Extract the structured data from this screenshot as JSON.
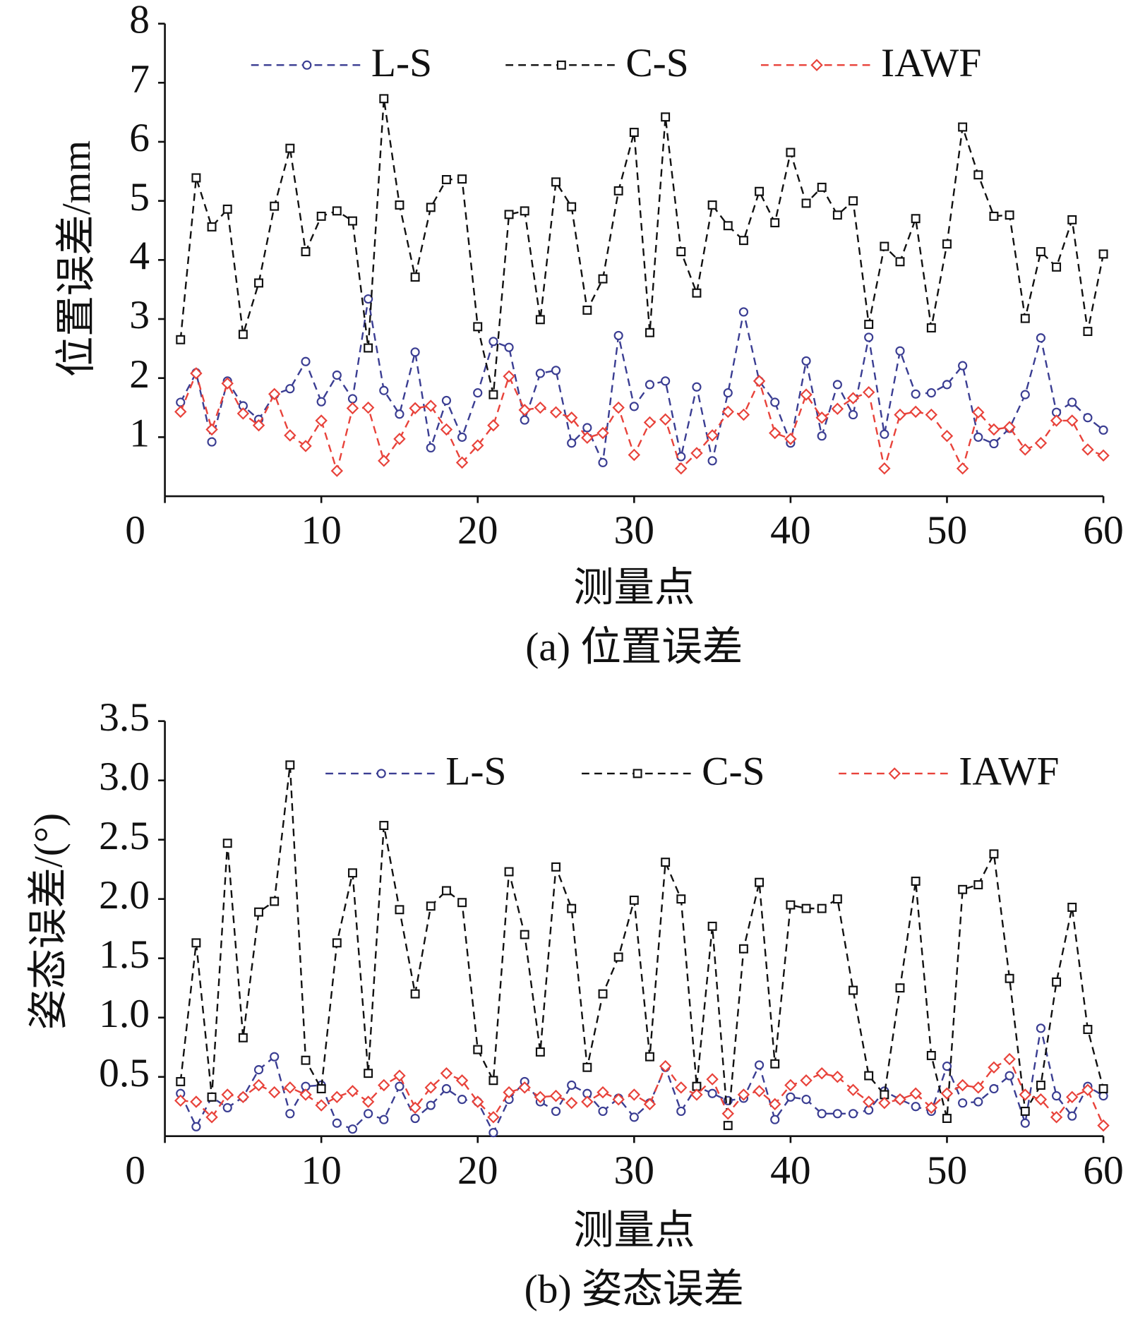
{
  "chart_data": [
    {
      "type": "line",
      "y_label": "位置误差/mm",
      "x_label": "测量点",
      "caption": "(a) 位置误差",
      "x": [
        1,
        2,
        3,
        4,
        5,
        6,
        7,
        8,
        9,
        10,
        11,
        12,
        13,
        14,
        15,
        16,
        17,
        18,
        19,
        20,
        21,
        22,
        23,
        24,
        25,
        26,
        27,
        28,
        29,
        30,
        31,
        32,
        33,
        34,
        35,
        36,
        37,
        38,
        39,
        40,
        41,
        42,
        43,
        44,
        45,
        46,
        47,
        48,
        49,
        50,
        51,
        52,
        53,
        54,
        55,
        56,
        57,
        58,
        59,
        60
      ],
      "xlim": [
        0,
        60
      ],
      "xticks": [
        0,
        10,
        20,
        30,
        40,
        50,
        60
      ],
      "ylim": [
        0,
        8
      ],
      "yticks": [
        1,
        2,
        3,
        4,
        5,
        6,
        7,
        8
      ],
      "series": [
        {
          "name": "L-S",
          "color": "#3a3d92",
          "marker": "circle",
          "values": [
            1.59,
            2.09,
            0.92,
            1.95,
            1.53,
            1.3,
            1.72,
            1.82,
            2.28,
            1.6,
            2.05,
            1.65,
            3.34,
            1.79,
            1.39,
            2.44,
            0.82,
            1.62,
            1.0,
            1.75,
            2.62,
            2.52,
            1.29,
            2.08,
            2.13,
            0.9,
            1.16,
            0.57,
            2.72,
            1.52,
            1.89,
            1.95,
            0.67,
            1.85,
            0.6,
            1.75,
            3.12,
            1.95,
            1.59,
            0.9,
            2.29,
            1.02,
            1.89,
            1.38,
            2.69,
            1.05,
            2.46,
            1.73,
            1.75,
            1.89,
            2.21,
            1.0,
            0.89,
            1.15,
            1.72,
            2.68,
            1.42,
            1.59,
            1.33,
            1.12
          ]
        },
        {
          "name": "C-S",
          "color": "#111111",
          "marker": "square",
          "values": [
            2.65,
            5.39,
            4.56,
            4.86,
            2.74,
            3.61,
            4.91,
            5.89,
            4.14,
            4.74,
            4.83,
            4.66,
            2.51,
            6.73,
            4.93,
            3.71,
            4.89,
            5.36,
            5.37,
            2.87,
            1.72,
            4.77,
            4.83,
            2.99,
            5.32,
            4.9,
            3.15,
            3.68,
            5.17,
            6.16,
            2.77,
            6.42,
            4.14,
            3.44,
            4.93,
            4.58,
            4.33,
            5.16,
            4.63,
            5.82,
            4.96,
            5.23,
            4.76,
            5.0,
            2.91,
            4.23,
            3.97,
            4.7,
            2.85,
            4.27,
            6.25,
            5.44,
            4.74,
            4.76,
            3.01,
            4.14,
            3.88,
            4.68,
            2.79,
            4.1
          ]
        },
        {
          "name": "IAWF",
          "color": "#e8423a",
          "marker": "diamond",
          "values": [
            1.43,
            2.08,
            1.13,
            1.91,
            1.4,
            1.2,
            1.73,
            1.03,
            0.85,
            1.28,
            0.43,
            1.49,
            1.5,
            0.6,
            0.97,
            1.49,
            1.53,
            1.13,
            0.57,
            0.86,
            1.2,
            2.03,
            1.46,
            1.5,
            1.42,
            1.33,
            0.99,
            1.07,
            1.5,
            0.7,
            1.25,
            1.3,
            0.47,
            0.73,
            1.03,
            1.43,
            1.38,
            1.95,
            1.07,
            0.97,
            1.72,
            1.33,
            1.48,
            1.66,
            1.76,
            0.47,
            1.38,
            1.43,
            1.38,
            1.02,
            0.47,
            1.42,
            1.13,
            1.17,
            0.79,
            0.9,
            1.28,
            1.28,
            0.79,
            0.69
          ]
        }
      ]
    },
    {
      "type": "line",
      "y_label": "姿态误差/(°)",
      "x_label": "测量点",
      "caption": "(b) 姿态误差",
      "x": [
        1,
        2,
        3,
        4,
        5,
        6,
        7,
        8,
        9,
        10,
        11,
        12,
        13,
        14,
        15,
        16,
        17,
        18,
        19,
        20,
        21,
        22,
        23,
        24,
        25,
        26,
        27,
        28,
        29,
        30,
        31,
        32,
        33,
        34,
        35,
        36,
        37,
        38,
        39,
        40,
        41,
        42,
        43,
        44,
        45,
        46,
        47,
        48,
        49,
        50,
        51,
        52,
        53,
        54,
        55,
        56,
        57,
        58,
        59,
        60
      ],
      "xlim": [
        0,
        60
      ],
      "xticks": [
        0,
        10,
        20,
        30,
        40,
        50,
        60
      ],
      "ylim": [
        0,
        3.5
      ],
      "yticks": [
        0.5,
        {
          "value": 1,
          "label": "1.0"
        },
        1.5,
        {
          "value": 2,
          "label": "2.0"
        },
        2.5,
        {
          "value": 3,
          "label": "3.0"
        },
        3.5
      ],
      "series": [
        {
          "name": "L-S",
          "color": "#3a3d92",
          "marker": "circle",
          "values": [
            0.36,
            0.08,
            0.33,
            0.24,
            0.33,
            0.56,
            0.67,
            0.19,
            0.42,
            0.43,
            0.11,
            0.06,
            0.19,
            0.14,
            0.42,
            0.15,
            0.26,
            0.4,
            0.31,
            0.29,
            0.03,
            0.31,
            0.46,
            0.29,
            0.21,
            0.43,
            0.36,
            0.21,
            0.32,
            0.16,
            0.28,
            0.58,
            0.21,
            0.42,
            0.36,
            0.3,
            0.32,
            0.6,
            0.14,
            0.33,
            0.31,
            0.19,
            0.19,
            0.19,
            0.22,
            0.38,
            0.31,
            0.25,
            0.21,
            0.59,
            0.28,
            0.29,
            0.4,
            0.51,
            0.11,
            0.91,
            0.34,
            0.17,
            0.42,
            0.34
          ]
        },
        {
          "name": "C-S",
          "color": "#111111",
          "marker": "square",
          "values": [
            0.46,
            1.63,
            0.33,
            2.47,
            0.83,
            1.89,
            1.98,
            3.13,
            0.64,
            0.4,
            1.63,
            2.22,
            0.53,
            2.62,
            1.91,
            1.2,
            1.94,
            2.07,
            1.97,
            0.73,
            0.47,
            2.23,
            1.7,
            0.71,
            2.27,
            1.92,
            0.58,
            1.2,
            1.51,
            1.99,
            0.67,
            2.31,
            2.0,
            0.42,
            1.77,
            0.09,
            1.58,
            2.14,
            0.61,
            1.95,
            1.92,
            1.92,
            2.0,
            1.23,
            0.51,
            0.35,
            1.25,
            2.15,
            0.68,
            0.15,
            2.08,
            2.12,
            2.38,
            1.33,
            0.21,
            0.43,
            1.3,
            1.93,
            0.9,
            0.4
          ]
        },
        {
          "name": "IAWF",
          "color": "#e8423a",
          "marker": "diamond",
          "values": [
            0.3,
            0.29,
            0.16,
            0.35,
            0.33,
            0.43,
            0.37,
            0.41,
            0.35,
            0.26,
            0.33,
            0.38,
            0.29,
            0.43,
            0.51,
            0.24,
            0.41,
            0.53,
            0.47,
            0.29,
            0.16,
            0.37,
            0.41,
            0.33,
            0.34,
            0.28,
            0.29,
            0.37,
            0.31,
            0.35,
            0.27,
            0.59,
            0.41,
            0.35,
            0.48,
            0.19,
            0.35,
            0.38,
            0.27,
            0.43,
            0.47,
            0.53,
            0.5,
            0.39,
            0.29,
            0.28,
            0.31,
            0.36,
            0.24,
            0.36,
            0.43,
            0.41,
            0.58,
            0.65,
            0.35,
            0.31,
            0.16,
            0.33,
            0.39,
            0.09
          ]
        }
      ]
    }
  ]
}
